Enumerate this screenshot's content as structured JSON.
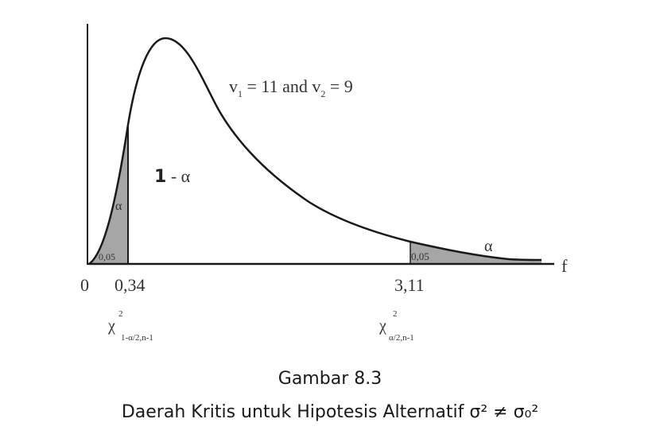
{
  "curve_label": {
    "v1_prefix": "v",
    "v1_sub": "1",
    "v1_rest": " = 11 and ",
    "v2_prefix": "v",
    "v2_sub": "2",
    "v2_rest": " = 9"
  },
  "axis": {
    "x_label": "f",
    "origin_label": "0"
  },
  "regions": {
    "center_label_one": "1",
    "center_label_rest": " - α",
    "left_tail_alpha": "α",
    "left_tail_value": "0,05",
    "right_tail_alpha": "α",
    "right_tail_value": "0,05"
  },
  "critical_values": {
    "left": "0,34",
    "right": "3,11"
  },
  "chi_labels": {
    "left_symbol": "χ",
    "left_sup": "2",
    "left_sub": "1-α/2,n-1",
    "right_symbol": "χ",
    "right_sup": "2",
    "right_sub": "α/2,n-1"
  },
  "caption": {
    "title": "Gambar 8.3",
    "subtitle": "Daerah Kritis untuk Hipotesis Alternatif σ² ≠ σ₀²"
  },
  "colors": {
    "curve": "#1a1a1a",
    "shade": "#a6a6a6"
  }
}
